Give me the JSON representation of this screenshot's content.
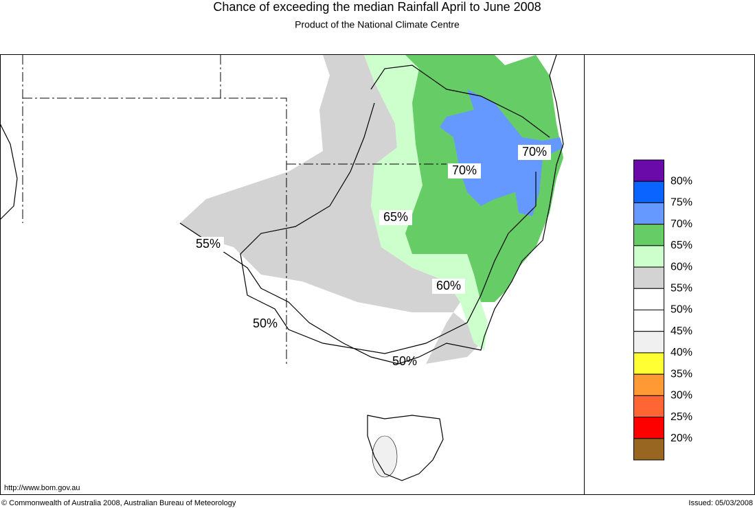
{
  "header": {
    "title": "Chance of exceeding the median Rainfall April to June 2008",
    "subtitle": "Product of the National Climate Centre"
  },
  "map": {
    "labels": [
      "55%",
      "70%",
      "70%",
      "65%",
      "60%",
      "50%",
      "50%"
    ]
  },
  "legend": {
    "colors": [
      "#6a0aa8",
      "#0a64ff",
      "#6699ff",
      "#66cc66",
      "#ccffcc",
      "#d3d3d3",
      "#ffffff",
      "#ffffff",
      "#f0f0f0",
      "#ffff33",
      "#ff9933",
      "#ff6633",
      "#ff0000",
      "#996622"
    ],
    "labels": [
      "80%",
      "75%",
      "70%",
      "65%",
      "60%",
      "55%",
      "50%",
      "45%",
      "40%",
      "35%",
      "30%",
      "25%",
      "20%"
    ]
  },
  "footer": {
    "url": "http://www.bom.gov.au",
    "copyright": "© Commonwealth of Australia 2008, Australian Bureau of Meteorology",
    "issued": "Issued: 05/03/2008"
  }
}
